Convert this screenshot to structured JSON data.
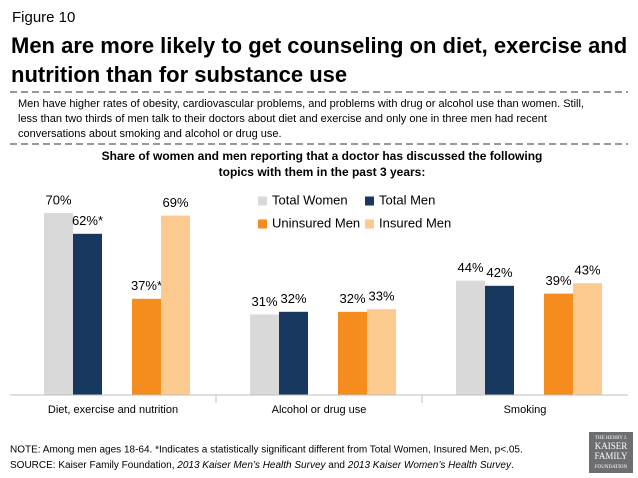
{
  "figure_label": "Figure 10",
  "headline": [
    "Men are more likely to get counseling on diet, exercise and",
    "nutrition than for substance use"
  ],
  "summary": [
    "Men have higher rates of obesity, cardiovascular problems, and problems with drug or alcohol use than women. Still,",
    "less than two thirds of men talk to their doctors about diet and exercise and only one in three men had recent",
    "conversations about smoking and alcohol or drug use."
  ],
  "note": "NOTE:  Among men ages 18-64. *Indicates a statistically significant different from Total Women, Insured Men, p<.05.",
  "source": [
    "SOURCE:  Kaiser Family Foundation, ",
    "2013 Kaiser Men’s Health Survey",
    " and ",
    "2013 Kaiser Women’s Health Survey",
    "."
  ],
  "logo": [
    "THE HENRY J.",
    "KAISER",
    "FAMILY",
    "FOUNDATION"
  ],
  "chart_data": {
    "type": "bar",
    "title": [
      "Share of women and men reporting that a doctor has discussed the following",
      "topics with them in the past 3 years:"
    ],
    "categories": [
      "Diet, exercise and nutrition",
      "Alcohol or drug use",
      "Smoking"
    ],
    "series": [
      {
        "name": "Total Women",
        "color": "#d9d9d9",
        "values": [
          70,
          31,
          44
        ],
        "value_labels": [
          "70%",
          "31%",
          "44%"
        ]
      },
      {
        "name": "Total Men",
        "color": "#17375e",
        "values": [
          62,
          32,
          42
        ],
        "value_labels": [
          "62%*",
          "32%",
          "42%"
        ]
      },
      {
        "name": "Uninsured Men",
        "color": "#f58c1e",
        "values": [
          37,
          32,
          39
        ],
        "value_labels": [
          "37%*",
          "32%",
          "39%"
        ]
      },
      {
        "name": "Insured Men",
        "color": "#fcc98f",
        "values": [
          69,
          33,
          43
        ],
        "value_labels": [
          "69%",
          "33%",
          "43%"
        ]
      }
    ],
    "ylim": [
      0,
      80
    ],
    "legend": "top"
  }
}
